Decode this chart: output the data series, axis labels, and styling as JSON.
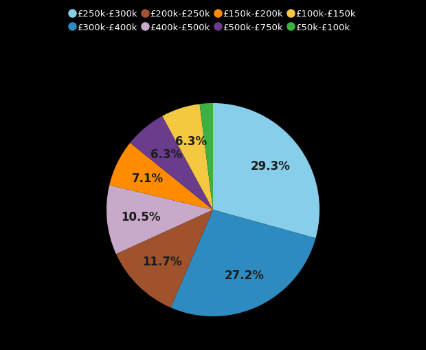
{
  "labels": [
    "£250k-£300k",
    "£300k-£400k",
    "£200k-£250k",
    "£400k-£500k",
    "£150k-£200k",
    "£500k-£750k",
    "£100k-£150k",
    "£50k-£100k"
  ],
  "values": [
    29.3,
    27.2,
    11.7,
    10.5,
    7.1,
    6.3,
    5.9,
    2.0
  ],
  "colors": [
    "#87ceeb",
    "#2e8bc0",
    "#a0522d",
    "#c9a9c9",
    "#ff8c00",
    "#6a3c8c",
    "#f5c842",
    "#3cb043"
  ],
  "label_percents": [
    "29.3%",
    "27.2%",
    "11.7%",
    "10.5%",
    "7.1%",
    "6.3%",
    "",
    ""
  ],
  "background_color": "#000000",
  "text_color": "#1a1a1a",
  "legend_text_color": "#ffffff",
  "startangle": 90,
  "pctdistance": 0.68
}
